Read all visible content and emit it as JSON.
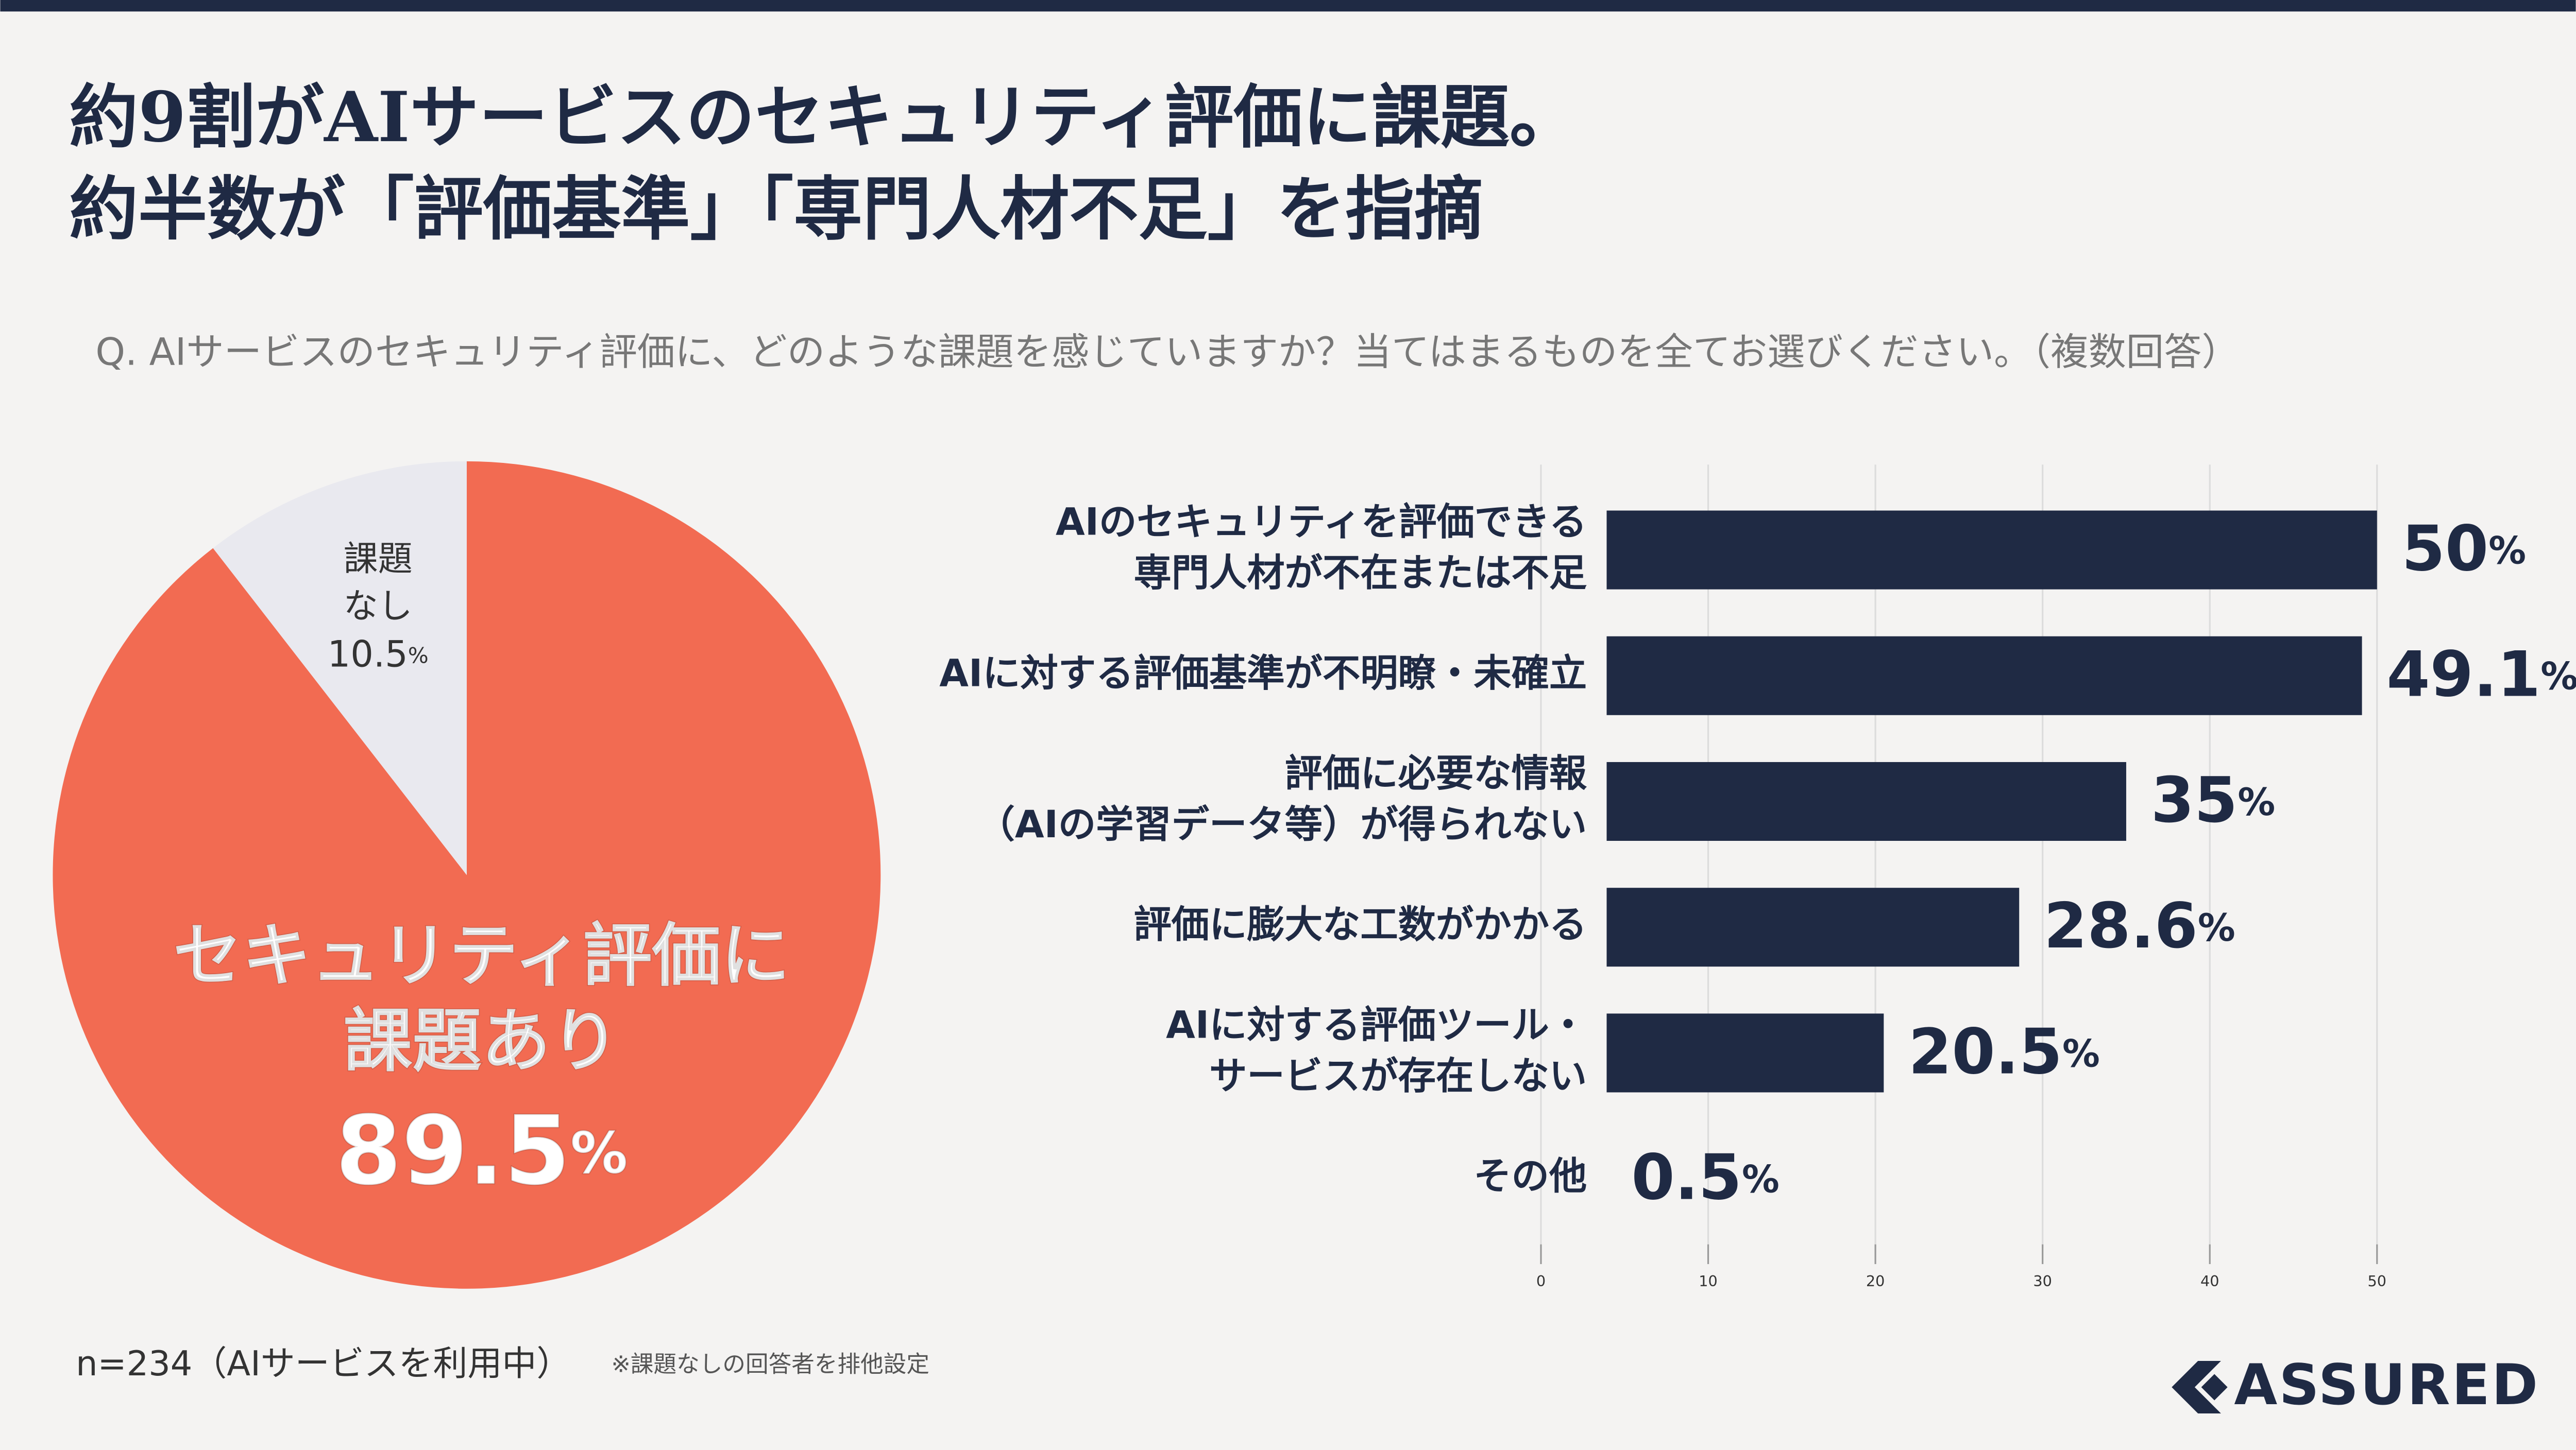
{
  "header": {
    "title_lines": [
      "約9割がAIサービスのセキュリティ評価に課題。",
      "約半数が「評価基準」「専門人材不足」を指摘"
    ],
    "question": "Q. AIサービスのセキュリティ評価に、どのような課題を感じていますか？当てはまるものを全てお選びください。（複数回答）"
  },
  "chart_data": [
    {
      "type": "pie",
      "categories": [
        "セキュリティ評価に\n課題あり",
        "課題\nなし"
      ],
      "values": [
        89.5,
        10.5
      ],
      "value_labels": [
        "89.5%",
        "10.5%"
      ],
      "colors": [
        "#f26b52",
        "#e9e9ef"
      ]
    },
    {
      "type": "bar",
      "orientation": "horizontal",
      "categories": [
        "AIのセキュリティを評価できる\n専門人材が不在または不足",
        "AIに対する評価基準が不明瞭・未確立",
        "評価に必要な情報\n（AIの学習データ等）が得られない",
        "評価に膨大な工数がかかる",
        "AIに対する評価ツール・\nサービスが存在しない",
        "その他"
      ],
      "values": [
        50,
        49.1,
        35,
        28.6,
        20.5,
        0.5
      ],
      "value_labels": [
        "50%",
        "49.1%",
        "35%",
        "28.6%",
        "20.5%",
        "0.5%"
      ],
      "color": "#1f2a44",
      "xlim": [
        0,
        50
      ],
      "xticks": [
        0,
        10,
        20,
        30,
        40,
        50
      ],
      "grid": true
    }
  ],
  "footer": {
    "sample": "n=234（AIサービスを利用中）",
    "note": "※課題なしの回答者を排他設定",
    "logo": "ASSURED"
  }
}
